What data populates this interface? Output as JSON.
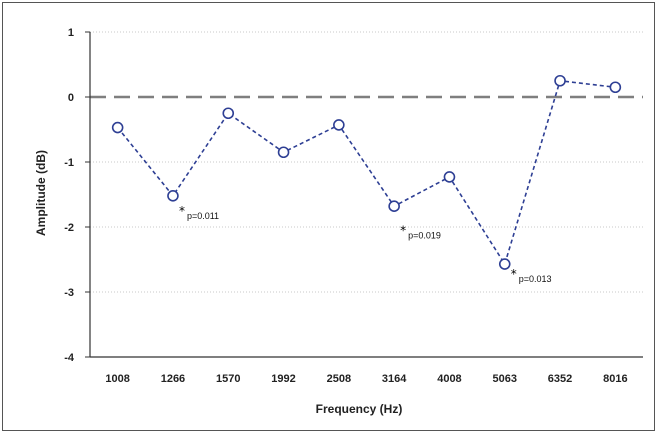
{
  "chart_data": {
    "type": "line",
    "title": "",
    "xlabel": "Frequency (Hz)",
    "ylabel": "Amplitude (dB)",
    "categories": [
      "1008",
      "1266",
      "1570",
      "1992",
      "2508",
      "3164",
      "4008",
      "5063",
      "6352",
      "8016"
    ],
    "series": [
      {
        "values": [
          -0.47,
          -1.52,
          -0.25,
          -0.85,
          -0.43,
          -1.68,
          -1.23,
          -2.57,
          0.25,
          0.15
        ],
        "color": "#2e3f94"
      }
    ],
    "ylim": [
      -4,
      1
    ],
    "yticks": [
      1,
      0,
      -1,
      -2,
      -3,
      -4
    ],
    "reference_line": {
      "y": 0,
      "style": "dashed",
      "color": "#7f7f7f"
    },
    "grid": "horizontal dotted",
    "annotations": [
      {
        "category_index": 1,
        "y": -1.75,
        "marker": "*",
        "text": "p=0.011"
      },
      {
        "category_index": 5,
        "y": -2.05,
        "marker": "*",
        "text": "p=0.019"
      },
      {
        "category_index": 7,
        "y": -2.72,
        "marker": "*",
        "text": "p=0.013"
      }
    ]
  }
}
